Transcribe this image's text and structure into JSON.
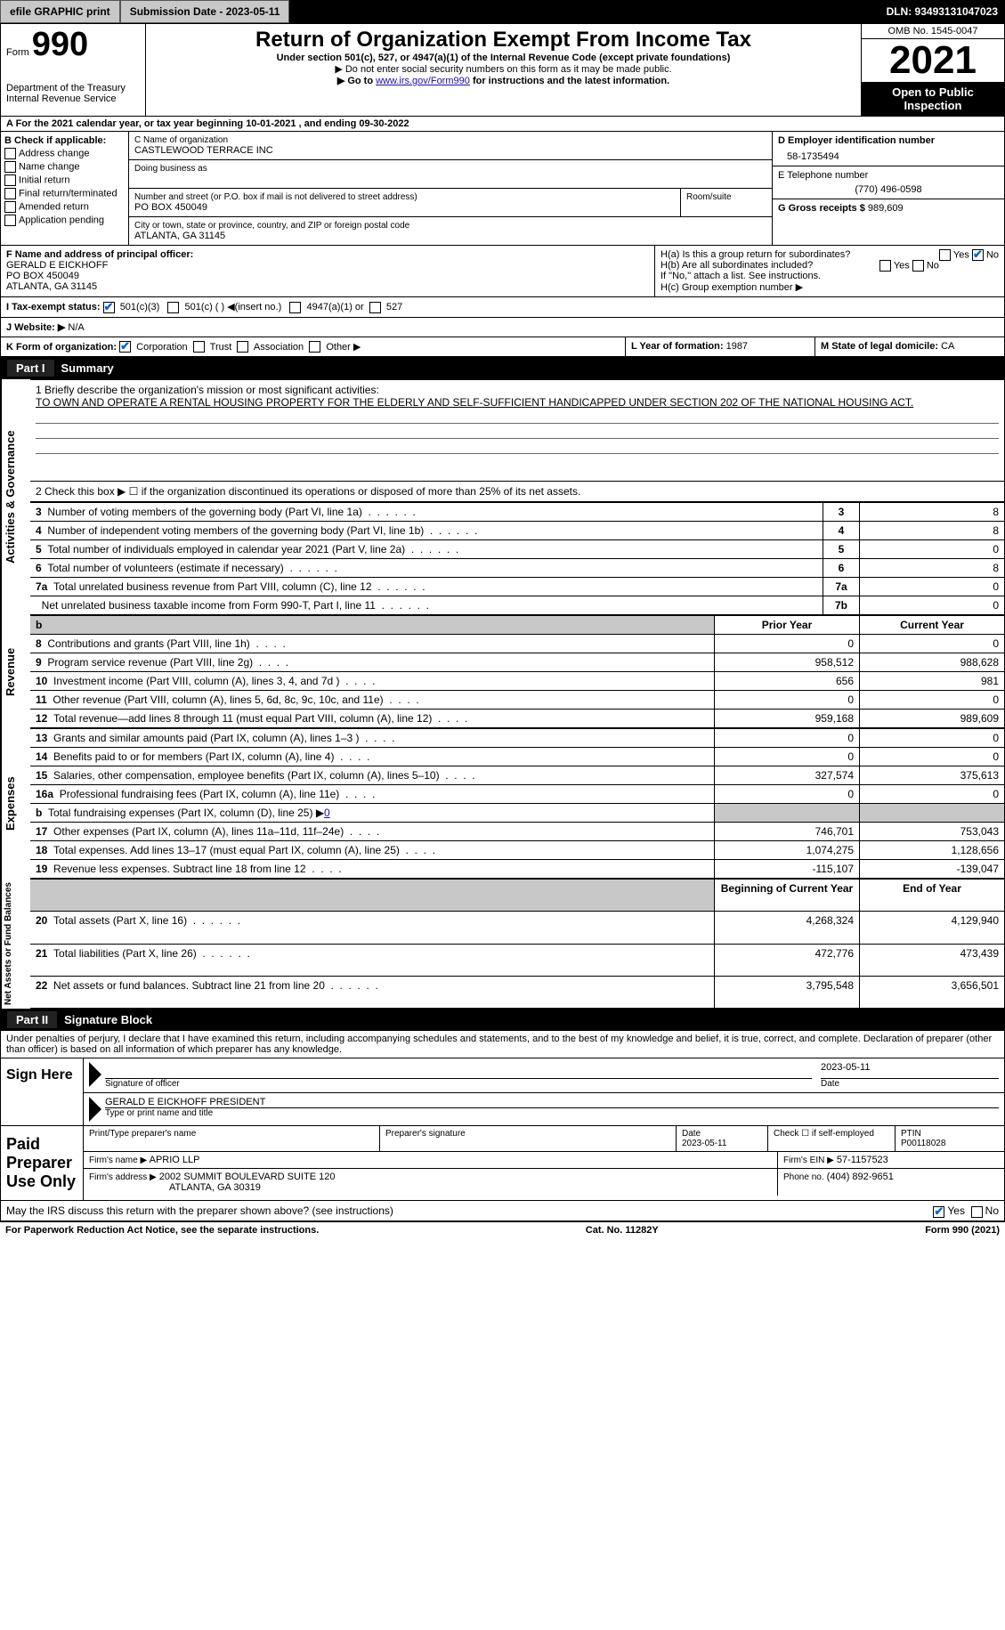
{
  "topbar": {
    "efile": "efile GRAPHIC print",
    "submission": "Submission Date - 2023-05-11",
    "dln": "DLN: 93493131047023"
  },
  "header": {
    "form_label": "Form",
    "form_num": "990",
    "dept": "Department of the Treasury Internal Revenue Service",
    "title": "Return of Organization Exempt From Income Tax",
    "subtitle": "Under section 501(c), 527, or 4947(a)(1) of the Internal Revenue Code (except private foundations)",
    "note1": "▶ Do not enter social security numbers on this form as it may be made public.",
    "note2_pre": "▶ Go to ",
    "note2_link": "www.irs.gov/Form990",
    "note2_post": " for instructions and the latest information.",
    "omb": "OMB No. 1545-0047",
    "year": "2021",
    "open": "Open to Public Inspection"
  },
  "row_a": "A For the 2021 calendar year, or tax year beginning 10-01-2021    , and ending 09-30-2022",
  "b": {
    "label": "B Check if applicable:",
    "items": [
      "Address change",
      "Name change",
      "Initial return",
      "Final return/terminated",
      "Amended return",
      "Application pending"
    ]
  },
  "c": {
    "name_label": "C Name of organization",
    "name": "CASTLEWOOD TERRACE INC",
    "dba_label": "Doing business as",
    "addr_label": "Number and street (or P.O. box if mail is not delivered to street address)",
    "room_label": "Room/suite",
    "addr": "PO BOX 450049",
    "city_label": "City or town, state or province, country, and ZIP or foreign postal code",
    "city": "ATLANTA, GA  31145"
  },
  "d": {
    "label": "D Employer identification number",
    "val": "58-1735494"
  },
  "e": {
    "label": "E Telephone number",
    "val": "(770) 496-0598"
  },
  "g": {
    "label": "G Gross receipts $",
    "val": "989,609"
  },
  "f": {
    "label": "F  Name and address of principal officer:",
    "name": "GERALD E EICKHOFF",
    "addr1": "PO BOX 450049",
    "addr2": "ATLANTA, GA   31145"
  },
  "h": {
    "a": "H(a)  Is this a group return for subordinates?",
    "b": "H(b)  Are all subordinates included?",
    "note": "If \"No,\" attach a list. See instructions.",
    "c": "H(c)  Group exemption number ▶",
    "yes": "Yes",
    "no": "No"
  },
  "i": {
    "label": "I     Tax-exempt status:",
    "opt1": "501(c)(3)",
    "opt2": "501(c) (  ) ◀(insert no.)",
    "opt3": "4947(a)(1) or",
    "opt4": "527"
  },
  "j": {
    "label": "J     Website: ▶",
    "val": "N/A"
  },
  "k": {
    "label": "K Form of organization:",
    "opts": [
      "Corporation",
      "Trust",
      "Association",
      "Other ▶"
    ]
  },
  "l": {
    "label": "L Year of formation:",
    "val": "1987"
  },
  "m": {
    "label": "M State of legal domicile:",
    "val": "CA"
  },
  "part1": {
    "num": "Part I",
    "title": "Summary"
  },
  "summary": {
    "q1_label": "1   Briefly describe the organization's mission or most significant activities:",
    "q1_text": "TO OWN AND OPERATE A RENTAL HOUSING PROPERTY FOR THE ELDERLY AND SELF-SUFFICIENT HANDICAPPED UNDER SECTION 202 OF THE NATIONAL HOUSING ACT.",
    "q2": "2   Check this box ▶ ☐  if the organization discontinued its operations or disposed of more than 25% of its net assets.",
    "lines": [
      {
        "n": "3",
        "t": "Number of voting members of the governing body (Part VI, line 1a)",
        "box": "3",
        "v": "8"
      },
      {
        "n": "4",
        "t": "Number of independent voting members of the governing body (Part VI, line 1b)",
        "box": "4",
        "v": "8"
      },
      {
        "n": "5",
        "t": "Total number of individuals employed in calendar year 2021 (Part V, line 2a)",
        "box": "5",
        "v": "0"
      },
      {
        "n": "6",
        "t": "Total number of volunteers (estimate if necessary)",
        "box": "6",
        "v": "8"
      },
      {
        "n": "7a",
        "t": "Total unrelated business revenue from Part VIII, column (C), line 12",
        "box": "7a",
        "v": "0"
      },
      {
        "n": "",
        "t": "Net unrelated business taxable income from Form 990-T, Part I, line 11",
        "box": "7b",
        "v": "0"
      }
    ],
    "col_prior": "Prior Year",
    "col_current": "Current Year",
    "rev_rows": [
      {
        "n": "8",
        "t": "Contributions and grants (Part VIII, line 1h)",
        "p": "0",
        "c": "0"
      },
      {
        "n": "9",
        "t": "Program service revenue (Part VIII, line 2g)",
        "p": "958,512",
        "c": "988,628"
      },
      {
        "n": "10",
        "t": "Investment income (Part VIII, column (A), lines 3, 4, and 7d )",
        "p": "656",
        "c": "981"
      },
      {
        "n": "11",
        "t": "Other revenue (Part VIII, column (A), lines 5, 6d, 8c, 9c, 10c, and 11e)",
        "p": "0",
        "c": "0"
      },
      {
        "n": "12",
        "t": "Total revenue—add lines 8 through 11 (must equal Part VIII, column (A), line 12)",
        "p": "959,168",
        "c": "989,609"
      }
    ],
    "exp_rows": [
      {
        "n": "13",
        "t": "Grants and similar amounts paid (Part IX, column (A), lines 1–3 )",
        "p": "0",
        "c": "0"
      },
      {
        "n": "14",
        "t": "Benefits paid to or for members (Part IX, column (A), line 4)",
        "p": "0",
        "c": "0"
      },
      {
        "n": "15",
        "t": "Salaries, other compensation, employee benefits (Part IX, column (A), lines 5–10)",
        "p": "327,574",
        "c": "375,613"
      },
      {
        "n": "16a",
        "t": "Professional fundraising fees (Part IX, column (A), line 11e)",
        "p": "0",
        "c": "0"
      },
      {
        "n": "b",
        "t": "Total fundraising expenses (Part IX, column (D), line 25) ▶0",
        "p": "shaded",
        "c": "shaded"
      },
      {
        "n": "17",
        "t": "Other expenses (Part IX, column (A), lines 11a–11d, 11f–24e)",
        "p": "746,701",
        "c": "753,043"
      },
      {
        "n": "18",
        "t": "Total expenses. Add lines 13–17 (must equal Part IX, column (A), line 25)",
        "p": "1,074,275",
        "c": "1,128,656"
      },
      {
        "n": "19",
        "t": "Revenue less expenses. Subtract line 18 from line 12",
        "p": "-115,107",
        "c": "-139,047"
      }
    ],
    "col_begin": "Beginning of Current Year",
    "col_end": "End of Year",
    "net_rows": [
      {
        "n": "20",
        "t": "Total assets (Part X, line 16)",
        "p": "4,268,324",
        "c": "4,129,940"
      },
      {
        "n": "21",
        "t": "Total liabilities (Part X, line 26)",
        "p": "472,776",
        "c": "473,439"
      },
      {
        "n": "22",
        "t": "Net assets or fund balances. Subtract line 21 from line 20",
        "p": "3,795,548",
        "c": "3,656,501"
      }
    ],
    "vlabels": {
      "gov": "Activities & Governance",
      "rev": "Revenue",
      "exp": "Expenses",
      "net": "Net Assets or Fund Balances"
    }
  },
  "part2": {
    "num": "Part II",
    "title": "Signature Block"
  },
  "sig": {
    "penalty": "Under penalties of perjury, I declare that I have examined this return, including accompanying schedules and statements, and to the best of my knowledge and belief, it is true, correct, and complete. Declaration of preparer (other than officer) is based on all information of which preparer has any knowledge.",
    "sign_here": "Sign Here",
    "sig_officer": "Signature of officer",
    "sig_date": "2023-05-11",
    "date_label": "Date",
    "officer_name": "GERALD E EICKHOFF  PRESIDENT",
    "officer_name_label": "Type or print name and title",
    "paid": "Paid Preparer Use Only",
    "prep_name_label": "Print/Type preparer's name",
    "prep_sig_label": "Preparer's signature",
    "prep_date_label": "Date",
    "prep_date": "2023-05-11",
    "check_self": "Check ☐ if self-employed",
    "ptin_label": "PTIN",
    "ptin": "P00118028",
    "firm_name_label": "Firm's name     ▶",
    "firm_name": "APRIO LLP",
    "firm_ein_label": "Firm's EIN ▶",
    "firm_ein": "57-1157523",
    "firm_addr_label": "Firm's address ▶",
    "firm_addr1": "2002 SUMMIT BOULEVARD SUITE 120",
    "firm_addr2": "ATLANTA, GA  30319",
    "phone_label": "Phone no.",
    "phone": "(404) 892-9651",
    "discuss": "May the IRS discuss this return with the preparer shown above? (see instructions)",
    "yes": "Yes",
    "no": "No"
  },
  "footer": {
    "left": "For Paperwork Reduction Act Notice, see the separate instructions.",
    "mid": "Cat. No. 11282Y",
    "right": "Form 990 (2021)"
  }
}
